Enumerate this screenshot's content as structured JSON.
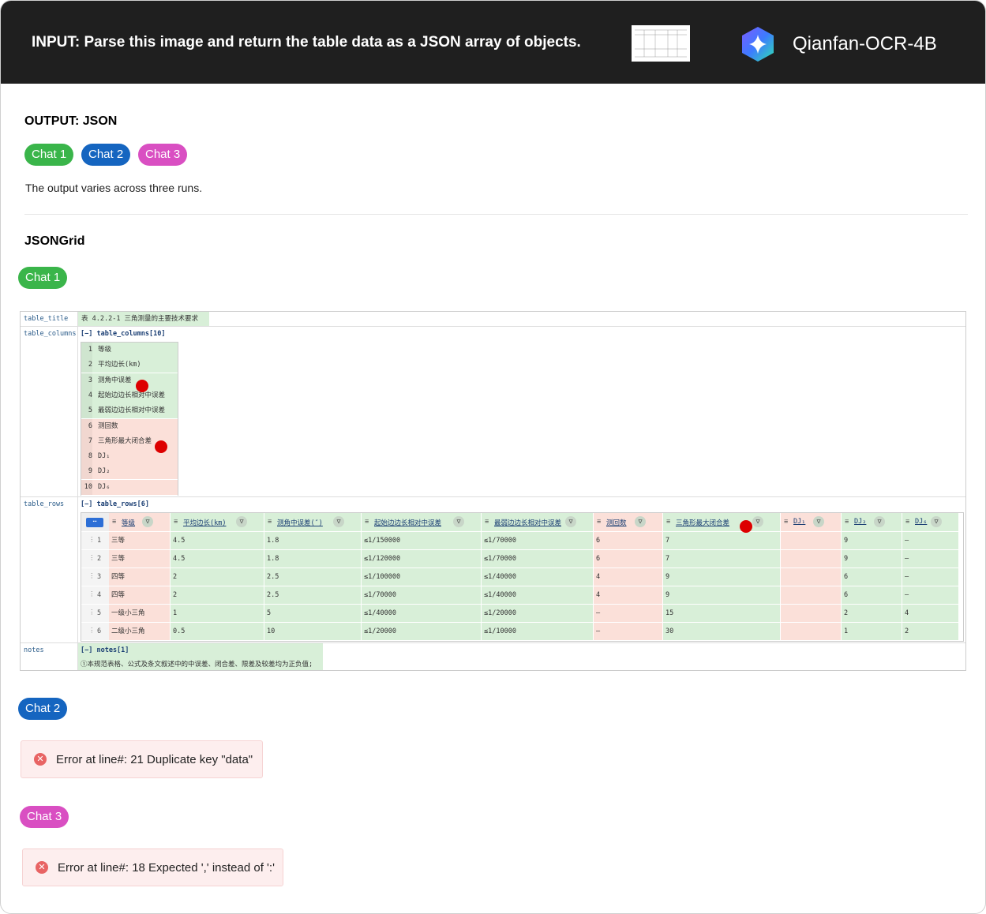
{
  "header": {
    "input": "INPUT: Parse this image and return the table data as a JSON array of objects.",
    "model": "Qianfan-OCR-4B"
  },
  "output": {
    "title": "OUTPUT: JSON",
    "chats": [
      "Chat 1",
      "Chat 2",
      "Chat 3"
    ],
    "note": "The output varies across three runs."
  },
  "grid_title": "JSONGrid",
  "chat1": {
    "label": "Chat 1",
    "grid": {
      "title_key": "table_title",
      "title": "表 4.2.2-1 三角测量的主要技术要求",
      "columns_key": "table_columns",
      "columns_toggle": "[−] table_columns[10]",
      "columns": [
        {
          "index": "1",
          "label": "等级"
        },
        {
          "index": "2",
          "label": "平均边长(km)"
        },
        {
          "index": "3",
          "label": "测角中误差"
        },
        {
          "index": "4",
          "label": "起始边边长相对中误差"
        },
        {
          "index": "5",
          "label": "最弱边边长相对中误差"
        },
        {
          "index": "6",
          "label": "测回数"
        },
        {
          "index": "7",
          "label": "三角形最大闭合差"
        },
        {
          "index": "8",
          "label": "DJ₁"
        },
        {
          "index": "9",
          "label": "DJ₂"
        },
        {
          "index": "10",
          "label": "DJ₆"
        }
      ],
      "rows_key": "table_rows",
      "rows_toggle": "[−] table_rows[6]",
      "headers": [
        "等级",
        "平均边长(km)",
        "测角中误差(″)",
        "起始边边长相对中误差",
        "最弱边边长相对中误差",
        "测回数",
        "三角形最大闭合差",
        "DJ₁",
        "DJ₂",
        "DJ₆"
      ],
      "rows": [
        {
          "index": "1",
          "cells": [
            "三等",
            "4.5",
            "1.8",
            "≤1/150000",
            "≤1/70000",
            "6",
            "7",
            null,
            "9",
            "–"
          ]
        },
        {
          "index": "2",
          "cells": [
            "三等",
            "4.5",
            "1.8",
            "≤1/120000",
            "≤1/70000",
            "6",
            "7",
            null,
            "9",
            "–"
          ]
        },
        {
          "index": "3",
          "cells": [
            "四等",
            "2",
            "2.5",
            "≤1/100000",
            "≤1/40000",
            "4",
            "9",
            null,
            "6",
            "–"
          ]
        },
        {
          "index": "4",
          "cells": [
            "四等",
            "2",
            "2.5",
            "≤1/70000",
            "≤1/40000",
            "4",
            "9",
            null,
            "6",
            "–"
          ]
        },
        {
          "index": "5",
          "cells": [
            "一级小三角",
            "1",
            "5",
            "≤1/40000",
            "≤1/20000",
            "–",
            "15",
            null,
            "2",
            "4"
          ]
        },
        {
          "index": "6",
          "cells": [
            "二级小三角",
            "0.5",
            "10",
            "≤1/20000",
            "≤1/10000",
            "–",
            "30",
            null,
            "1",
            "2"
          ]
        }
      ],
      "notes_key": "notes",
      "notes_toggle": "[−] notes[1]",
      "notes": [
        "①本规范表格、公式及条文叙述中的中误差、闭合差、限差及较差均为正负值;"
      ]
    }
  },
  "chat2": {
    "label": "Chat 2",
    "error": "Error at line#: 21 Duplicate key \"data\""
  },
  "chat3": {
    "label": "Chat 3",
    "error": "Error at line#: 18 Expected ',' instead of ':'"
  }
}
